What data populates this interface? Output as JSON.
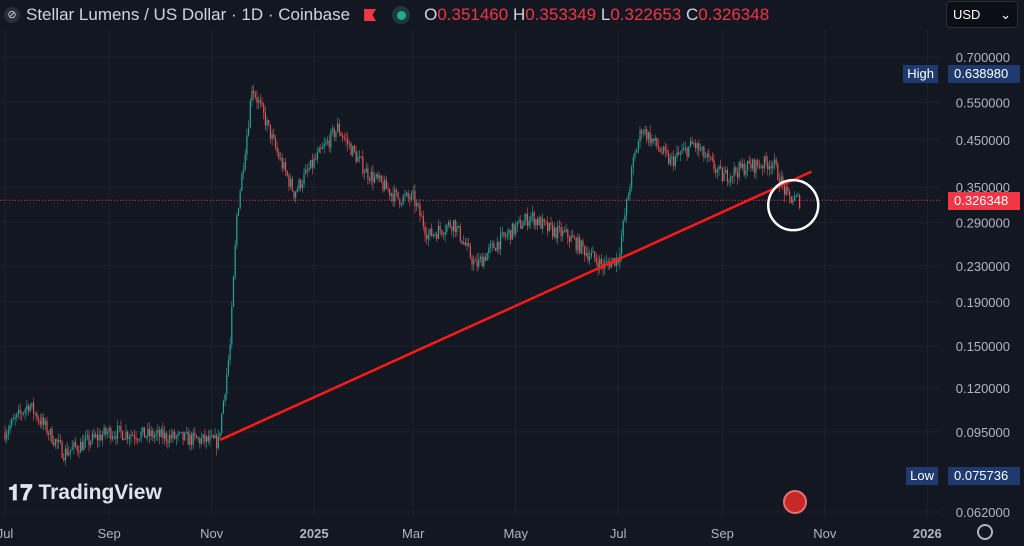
{
  "header": {
    "title": "Stellar Lumens / US Dollar · 1D · Coinbase",
    "o_label": "O",
    "o": "0.351460",
    "h_label": "H",
    "h": "0.353349",
    "l_label": "L",
    "l": "0.322653",
    "c_label": "C",
    "c": "0.326348"
  },
  "currency": "USD",
  "brand": "TradingView",
  "colors": {
    "up": "#26a69a",
    "down": "#ef5350",
    "trendline": "#ff1a1a",
    "price_tag": "#f23645"
  },
  "chart_data": {
    "type": "candlestick",
    "scale": "log",
    "y_ticks": [
      "0.700000",
      "0.550000",
      "0.450000",
      "0.350000",
      "0.290000",
      "0.230000",
      "0.190000",
      "0.150000",
      "0.120000",
      "0.095000",
      "0.062000"
    ],
    "x_ticks": [
      "Jul",
      "Sep",
      "Nov",
      "2025",
      "Mar",
      "May",
      "Jul",
      "Sep",
      "Nov",
      "2026"
    ],
    "high_label": "High",
    "high": "0.638980",
    "low_label": "Low",
    "low": "0.075736",
    "last_price": "0.326348",
    "ylim": [
      0.062,
      0.7
    ],
    "price_path": [
      [
        "2024-07-01",
        0.095
      ],
      [
        "2024-07-15",
        0.11
      ],
      [
        "2024-08-05",
        0.085
      ],
      [
        "2024-09-01",
        0.095
      ],
      [
        "2024-10-01",
        0.093
      ],
      [
        "2024-11-05",
        0.09
      ],
      [
        "2024-11-12",
        0.15
      ],
      [
        "2024-11-16",
        0.3
      ],
      [
        "2024-11-23",
        0.5
      ],
      [
        "2024-11-25",
        0.6
      ],
      [
        "2024-12-03",
        0.5
      ],
      [
        "2024-12-10",
        0.42
      ],
      [
        "2024-12-20",
        0.34
      ],
      [
        "2025-01-01",
        0.4
      ],
      [
        "2025-01-15",
        0.48
      ],
      [
        "2025-02-01",
        0.38
      ],
      [
        "2025-02-20",
        0.33
      ],
      [
        "2025-03-01",
        0.33
      ],
      [
        "2025-03-10",
        0.27
      ],
      [
        "2025-03-25",
        0.29
      ],
      [
        "2025-04-07",
        0.23
      ],
      [
        "2025-04-20",
        0.26
      ],
      [
        "2025-05-10",
        0.3
      ],
      [
        "2025-05-20",
        0.28
      ],
      [
        "2025-06-01",
        0.27
      ],
      [
        "2025-06-22",
        0.23
      ],
      [
        "2025-07-01",
        0.24
      ],
      [
        "2025-07-10",
        0.4
      ],
      [
        "2025-07-15",
        0.48
      ],
      [
        "2025-08-01",
        0.4
      ],
      [
        "2025-08-15",
        0.44
      ],
      [
        "2025-09-01",
        0.37
      ],
      [
        "2025-09-15",
        0.39
      ],
      [
        "2025-10-01",
        0.4
      ],
      [
        "2025-10-10",
        0.33
      ],
      [
        "2025-10-17",
        0.326
      ]
    ],
    "trendline": [
      [
        "2024-11-06",
        0.091
      ],
      [
        "2025-10-24",
        0.38
      ]
    ],
    "annotation": {
      "type": "circle",
      "date": "2025-10-12",
      "price": 0.33
    }
  }
}
